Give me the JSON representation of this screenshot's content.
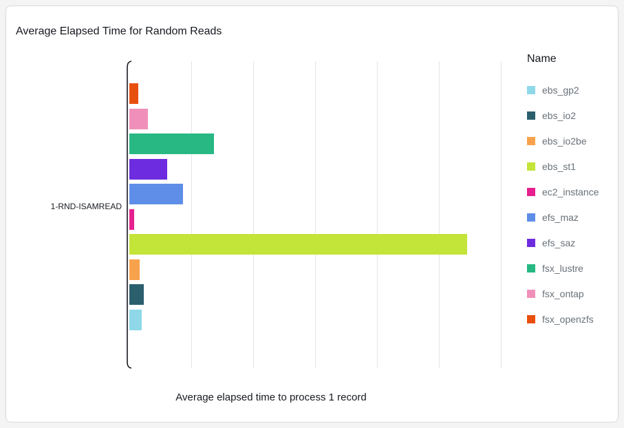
{
  "card": {
    "title": "Average Elapsed Time for Random Reads",
    "category": "1-RND-ISAMREAD",
    "xlabel": "Average elapsed time to process 1 record",
    "legend_title": "Name"
  },
  "chart_data": {
    "type": "bar",
    "orientation": "horizontal",
    "title": "Average Elapsed Time for Random Reads",
    "categories": [
      "1-RND-ISAMREAD"
    ],
    "xlabel": "Average elapsed time to process 1 record",
    "ylabel": "",
    "xlim": [
      0,
      6.33
    ],
    "grid": true,
    "x_tick_labels_visible": false,
    "legend_position": "right",
    "legend_title": "Name",
    "series": [
      {
        "name": "ebs_gp2",
        "color": "#8ed8ea",
        "values": [
          0.2
        ]
      },
      {
        "name": "ebs_io2",
        "color": "#2b5f6e",
        "values": [
          0.23
        ]
      },
      {
        "name": "ebs_io2be",
        "color": "#f8a24d",
        "values": [
          0.17
        ]
      },
      {
        "name": "ebs_st1",
        "color": "#c3e438",
        "values": [
          5.45
        ]
      },
      {
        "name": "ec2_instance",
        "color": "#e6208f",
        "values": [
          0.08
        ]
      },
      {
        "name": "efs_maz",
        "color": "#5f8ee8",
        "values": [
          0.87
        ]
      },
      {
        "name": "efs_saz",
        "color": "#6e2ce0",
        "values": [
          0.61
        ]
      },
      {
        "name": "fsx_lustre",
        "color": "#27b884",
        "values": [
          1.37
        ]
      },
      {
        "name": "fsx_ontap",
        "color": "#f090ba",
        "values": [
          0.3
        ]
      },
      {
        "name": "fsx_openzfs",
        "color": "#e84f0e",
        "values": [
          0.14
        ]
      }
    ],
    "bar_order_top_to_bottom": [
      "fsx_openzfs",
      "fsx_ontap",
      "fsx_lustre",
      "efs_saz",
      "efs_maz",
      "ec2_instance",
      "ebs_st1",
      "ebs_io2be",
      "ebs_io2",
      "ebs_gp2"
    ]
  }
}
